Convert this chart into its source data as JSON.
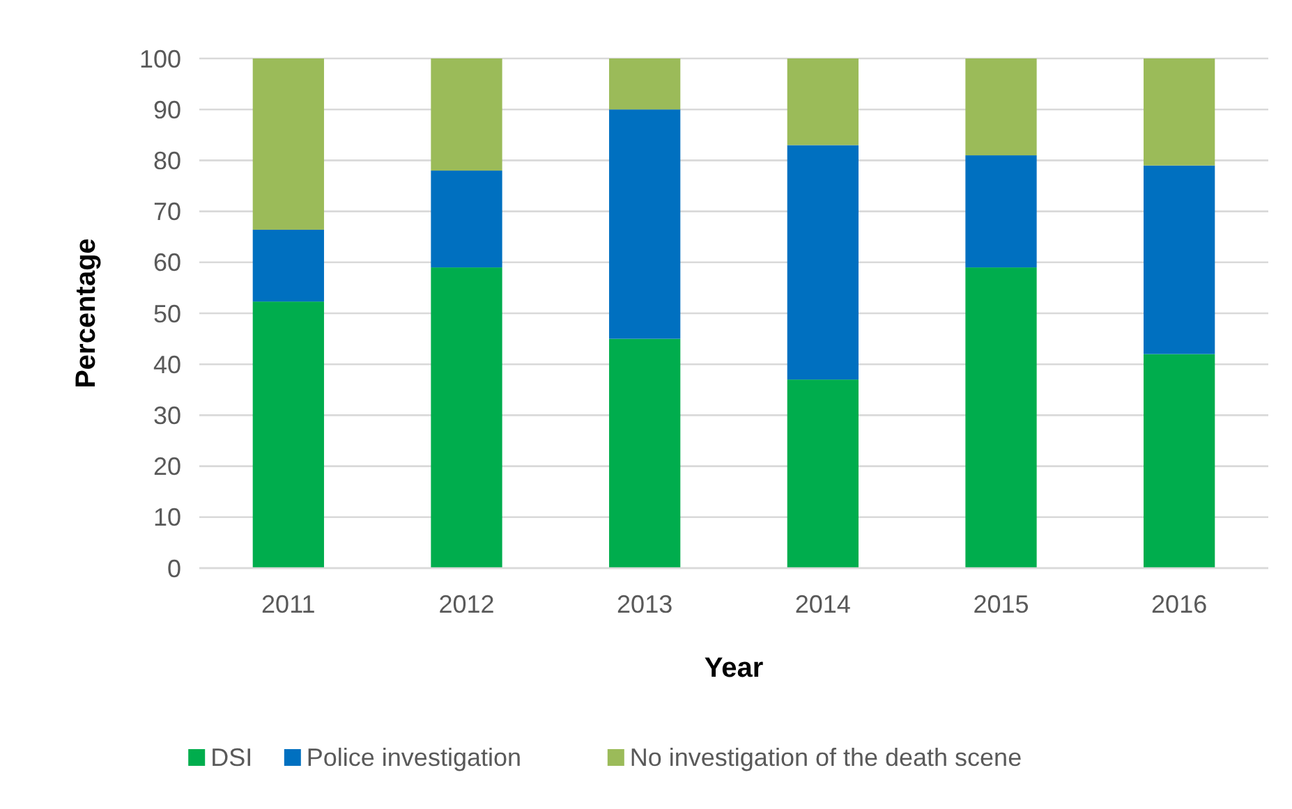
{
  "chart_data": {
    "type": "bar",
    "stacked": true,
    "xlabel": "Year",
    "ylabel": "Percentage",
    "categories": [
      "2011",
      "2012",
      "2013",
      "2014",
      "2015",
      "2016"
    ],
    "series": [
      {
        "name": "DSI",
        "color": "#00ad4d",
        "values": [
          52.3,
          59,
          45,
          37,
          59,
          42
        ]
      },
      {
        "name": "Police investigation",
        "color": "#0070c0",
        "values": [
          14.1,
          19,
          45,
          46,
          22,
          37
        ]
      },
      {
        "name": "No investigation of the death scene",
        "color": "#9bbb59",
        "values": [
          33.6,
          22,
          10,
          17,
          19,
          21
        ]
      }
    ],
    "ylim": [
      0,
      100
    ],
    "yticks": [
      0,
      10,
      20,
      30,
      40,
      50,
      60,
      70,
      80,
      90,
      100
    ],
    "grid": "y",
    "legend": "bottom"
  }
}
